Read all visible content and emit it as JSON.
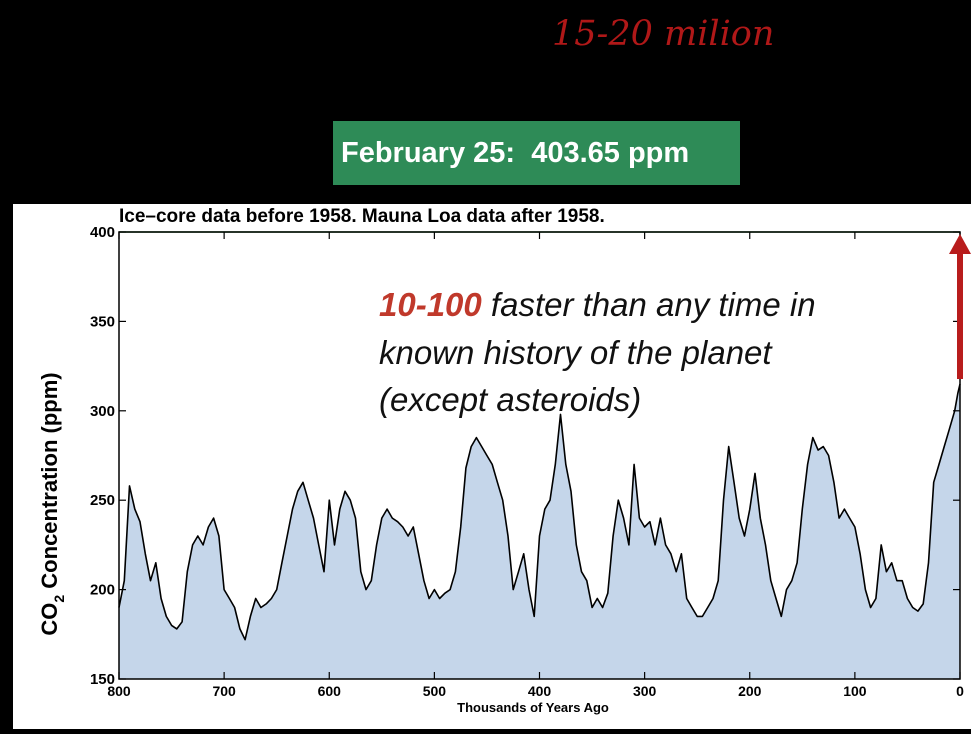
{
  "headline": "15-20 milion",
  "banner": {
    "date": "February 25:",
    "value": "403.65 ppm"
  },
  "annotation": {
    "highlight": "10-100",
    "line1_rest": " faster than any time in",
    "line2": "known history of the planet",
    "line3": "(except asteroids)"
  },
  "colors": {
    "background": "#000000",
    "banner": "#2e8b57",
    "highlight": "#c0392b",
    "area": "#c5d6ea",
    "line": "#000000",
    "reference_line": "#3aa04a",
    "arrow": "#b81c1c"
  },
  "chart_data": {
    "type": "area",
    "title": "Ice–core data before 1958. Mauna Loa data after 1958.",
    "xlabel": "Thousands of Years Ago",
    "ylabel_main": "CO",
    "ylabel_sub": "2",
    "ylabel_rest": " Concentration (ppm)",
    "xlim": [
      800,
      0
    ],
    "ylim": [
      150,
      400
    ],
    "xticks": [
      800,
      700,
      600,
      500,
      400,
      300,
      200,
      100,
      0
    ],
    "yticks": [
      150,
      200,
      250,
      300,
      350,
      400
    ],
    "reference_line": 400,
    "series": [
      {
        "x": [
          800,
          795,
          790,
          785,
          780,
          775,
          770,
          765,
          760,
          755,
          750,
          745,
          740,
          735,
          730,
          725,
          720,
          715,
          710,
          705,
          700,
          695,
          690,
          685,
          680,
          675,
          670,
          665,
          660,
          655,
          650,
          645,
          640,
          635,
          630,
          625,
          620,
          615,
          610,
          605,
          600,
          595,
          590,
          585,
          580,
          575,
          570,
          565,
          560,
          555,
          550,
          545,
          540,
          535,
          530,
          525,
          520,
          515,
          510,
          505,
          500,
          495,
          490,
          485,
          480,
          475,
          470,
          465,
          460,
          455,
          450,
          445,
          440,
          435,
          430,
          425,
          420,
          415,
          410,
          405,
          400,
          395,
          390,
          385,
          380,
          375,
          370,
          365,
          360,
          355,
          350,
          345,
          340,
          335,
          330,
          325,
          320,
          315,
          310,
          305,
          300,
          295,
          290,
          285,
          280,
          275,
          270,
          265,
          260,
          255,
          250,
          245,
          240,
          235,
          230,
          225,
          220,
          215,
          210,
          205,
          200,
          195,
          190,
          185,
          180,
          175,
          170,
          165,
          160,
          155,
          150,
          145,
          140,
          135,
          130,
          125,
          120,
          115,
          110,
          105,
          100,
          95,
          90,
          85,
          80,
          75,
          70,
          65,
          60,
          55,
          50,
          45,
          40,
          35,
          30,
          25,
          20,
          15,
          10,
          5,
          2,
          0
        ],
        "y": [
          190,
          205,
          258,
          245,
          238,
          220,
          205,
          215,
          195,
          185,
          180,
          178,
          182,
          210,
          225,
          230,
          225,
          235,
          240,
          230,
          200,
          195,
          190,
          178,
          172,
          185,
          195,
          190,
          192,
          195,
          200,
          215,
          230,
          245,
          255,
          260,
          250,
          240,
          225,
          210,
          250,
          225,
          245,
          255,
          250,
          240,
          210,
          200,
          205,
          225,
          240,
          245,
          240,
          238,
          235,
          230,
          235,
          220,
          205,
          195,
          200,
          195,
          198,
          200,
          210,
          235,
          268,
          280,
          285,
          280,
          275,
          270,
          260,
          250,
          230,
          200,
          210,
          220,
          200,
          185,
          230,
          245,
          250,
          270,
          298,
          270,
          255,
          225,
          210,
          205,
          190,
          195,
          190,
          198,
          230,
          250,
          240,
          225,
          270,
          240,
          235,
          238,
          225,
          240,
          225,
          220,
          210,
          220,
          195,
          190,
          185,
          185,
          190,
          195,
          205,
          250,
          280,
          260,
          240,
          230,
          245,
          265,
          240,
          225,
          205,
          195,
          185,
          200,
          205,
          215,
          245,
          270,
          285,
          278,
          280,
          275,
          260,
          240,
          245,
          240,
          235,
          220,
          200,
          190,
          195,
          225,
          210,
          215,
          205,
          205,
          195,
          190,
          188,
          192,
          215,
          260,
          270,
          280,
          290,
          300,
          310,
          315
        ]
      }
    ]
  }
}
